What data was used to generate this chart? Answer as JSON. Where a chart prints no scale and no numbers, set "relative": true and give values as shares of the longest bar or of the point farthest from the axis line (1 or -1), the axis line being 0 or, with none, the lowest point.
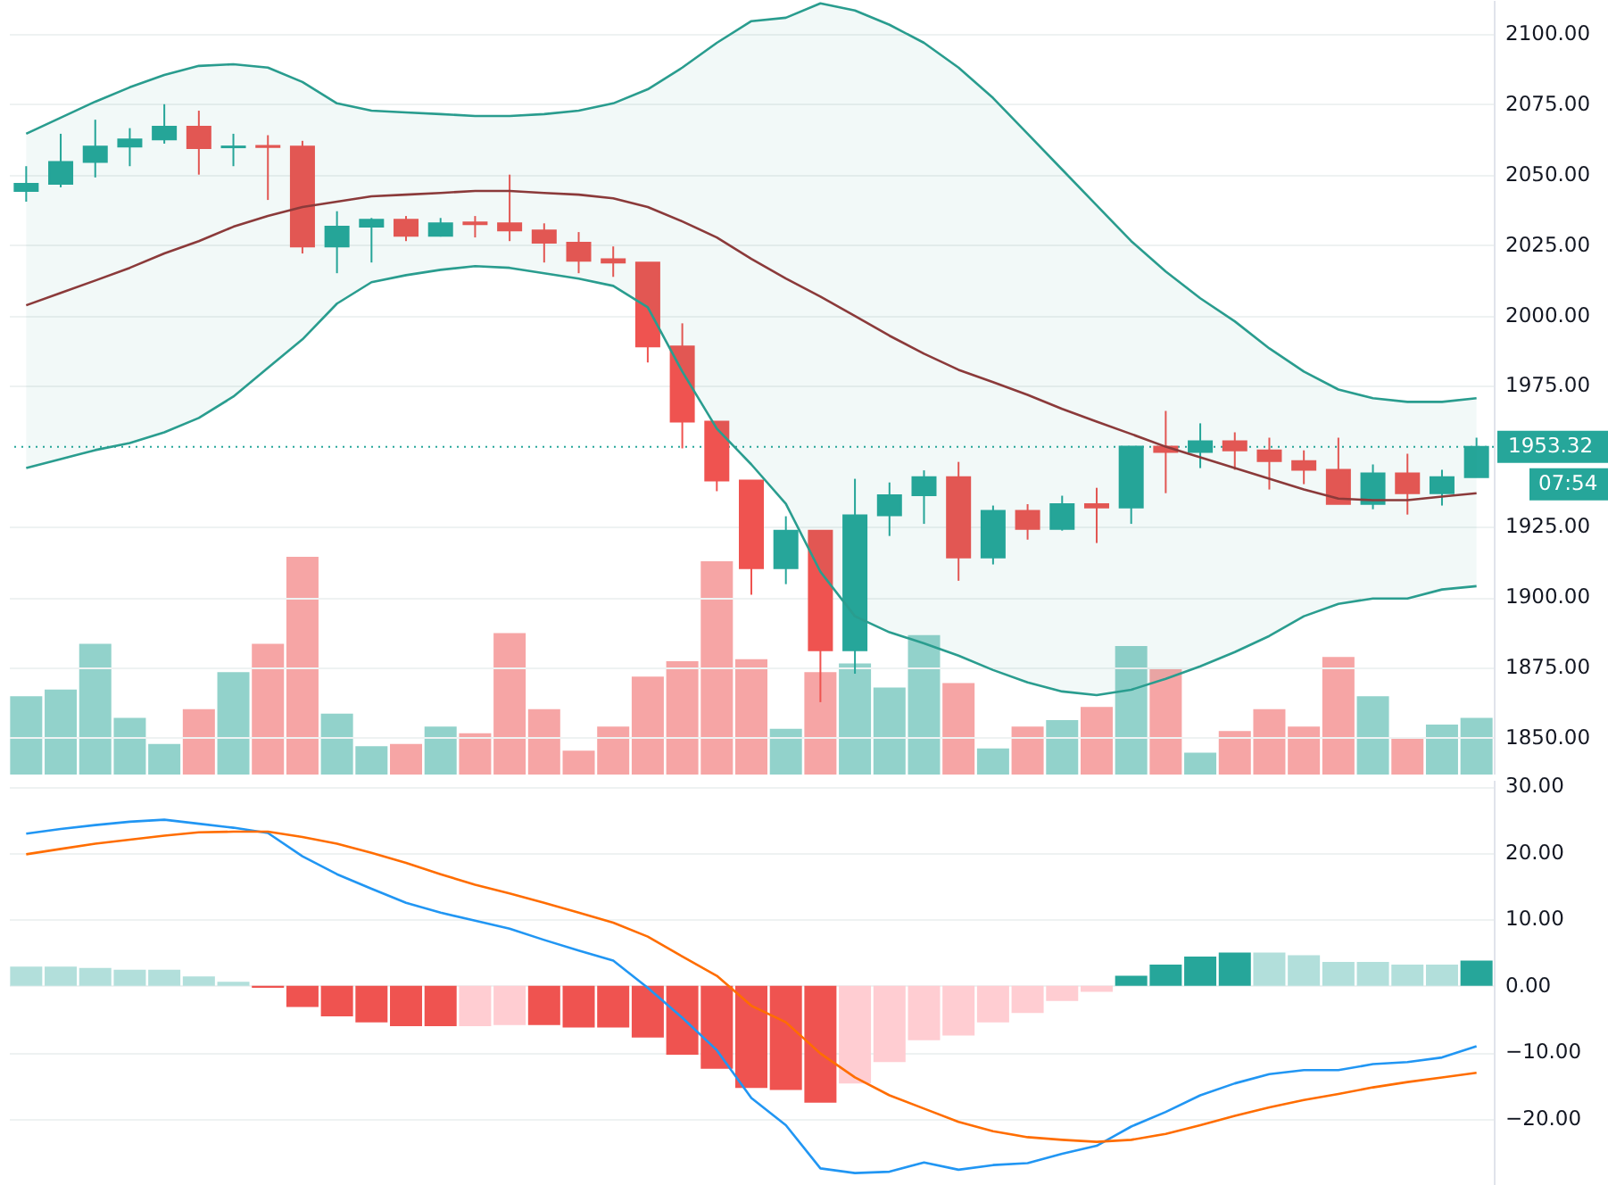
{
  "chart_data": [
    {
      "type": "candlestick",
      "categories": [
        null,
        null,
        null,
        null,
        null,
        null,
        null,
        null,
        null,
        null,
        null,
        null,
        null,
        null,
        null,
        null,
        null,
        null,
        null,
        null,
        null,
        null,
        null,
        null,
        null,
        null,
        null,
        null,
        null,
        null,
        null,
        null,
        null,
        null,
        null,
        null,
        null,
        null,
        null,
        null,
        null,
        null,
        null
      ],
      "ohlc": [
        [
          2044.2,
          2053,
          2040.4,
          2046.7
        ],
        [
          2046.7,
          2064.5,
          2045.5,
          2054.5
        ],
        [
          2054.5,
          2069.5,
          2049,
          2060
        ],
        [
          2060,
          2066.5,
          2053,
          2062.5
        ],
        [
          2062.5,
          2075,
          2061,
          2067
        ],
        [
          2067,
          2072.7,
          2050,
          2059.4
        ],
        [
          2059.7,
          2064.5,
          2053,
          2060
        ],
        [
          2060.2,
          2064,
          2041,
          2059.8
        ],
        [
          2060,
          2062,
          2022,
          2024.5
        ],
        [
          2024.5,
          2037,
          2015,
          2031.5
        ],
        [
          2031.5,
          2034.6,
          2018.8,
          2034
        ],
        [
          2034,
          2035.3,
          2026.4,
          2028.3
        ],
        [
          2028.3,
          2034.6,
          2028,
          2032.7
        ],
        [
          2033,
          2035.3,
          2027.7,
          2032.4
        ],
        [
          2032.7,
          2050,
          2026.4,
          2030.2
        ],
        [
          2030.2,
          2032.7,
          2018.8,
          2025.8
        ],
        [
          2025.8,
          2029.6,
          2015,
          2019.4
        ],
        [
          2020,
          2024.5,
          2013.7,
          2018.8
        ],
        [
          2018.8,
          2018.8,
          1983.3,
          1989
        ],
        [
          1989,
          1997.2,
          1952.8,
          1962.3
        ],
        [
          1962.3,
          1962.3,
          1937.6,
          1941.4
        ],
        [
          1941.4,
          1941.4,
          1900.8,
          1910.3
        ],
        [
          1910.3,
          1928.7,
          1904.6,
          1923.6
        ],
        [
          1923.6,
          1923.6,
          1862.7,
          1881.1
        ],
        [
          1881.1,
          1942,
          1872.8,
          1929
        ],
        [
          1929,
          1940.7,
          1921.7,
          1936.2
        ],
        [
          1936.2,
          1945,
          1926,
          1942.6
        ],
        [
          1942.6,
          1948,
          1905.8,
          1914.1
        ],
        [
          1914.1,
          1932.5,
          1911.6,
          1930.6
        ],
        [
          1930.6,
          1933,
          1920.4,
          1924.2
        ],
        [
          1924.2,
          1936,
          1923.6,
          1933
        ],
        [
          1933,
          1938.8,
          1919.2,
          1931.8
        ],
        [
          1931.8,
          1953.4,
          1926,
          1953.4
        ],
        [
          1953.4,
          1966.1,
          1936.9,
          1951.5
        ],
        [
          1951.5,
          1961.7,
          1945.8,
          1955.3
        ],
        [
          1955.3,
          1958.5,
          1945.2,
          1952.1
        ],
        [
          1952.1,
          1956.6,
          1938.2,
          1948.3
        ],
        [
          1948.3,
          1952.1,
          1940.1,
          1945.2
        ],
        [
          1945.2,
          1956.6,
          1933.1,
          1933.1
        ],
        [
          1933.1,
          1947.1,
          1931.2,
          1943.9
        ],
        [
          1943.9,
          1950.9,
          1929.3,
          1936.9
        ],
        [
          1936.9,
          1945.2,
          1932.5,
          1942.6
        ],
        [
          1942.6,
          1956.6,
          1942.6,
          1953.32
        ]
      ],
      "colors": [
        "#26a69a",
        "#26a69a",
        "#26a69a",
        "#26a69a",
        "#26a69a",
        "#ef5350",
        "#26a69a",
        "#ef5350",
        "#ef5350",
        "#26a69a",
        "#26a69a",
        "#ef5350",
        "#26a69a",
        "#ef5350",
        "#ef5350",
        "#ef5350",
        "#ef5350",
        "#ef5350",
        "#ef5350",
        "#ef5350",
        "#ef5350",
        "#ef5350",
        "#26a69a",
        "#ef5350",
        "#26a69a",
        "#26a69a",
        "#26a69a",
        "#ef5350",
        "#26a69a",
        "#ef5350",
        "#26a69a",
        "#ef5350",
        "#26a69a",
        "#ef5350",
        "#26a69a",
        "#ef5350",
        "#ef5350",
        "#ef5350",
        "#ef5350",
        "#26a69a",
        "#ef5350",
        "#26a69a",
        "#26a69a"
      ],
      "series": [
        {
          "type": "line",
          "color": "#2a9d8f",
          "values": [
            2064.5,
            2070.2,
            2075.9,
            2081.0,
            2085.4,
            2088.6,
            2089.2,
            2088.0,
            2082.9,
            2075.3,
            2072.7,
            2072.1,
            2071.5,
            2070.8,
            2070.8,
            2071.5,
            2072.7,
            2075.3,
            2080.3,
            2088.0,
            2096.8,
            2104.5,
            2105.7,
            2110.8,
            2108.3,
            2103.2,
            2096.8,
            2088.0,
            2077.2,
            2064.5,
            2051.8,
            2039.1,
            2026.4,
            2015.6,
            2006.1,
            1997.9,
            1988.3,
            1980.1,
            1973.7,
            1970.6,
            1969.3,
            1969.3,
            1970.6
          ]
        },
        {
          "type": "line",
          "color": "#8b3a3a",
          "values": [
            2003.6,
            2008.0,
            2012.4,
            2016.9,
            2022.0,
            2026.4,
            2031.5,
            2035.3,
            2038.5,
            2040.4,
            2042.3,
            2042.9,
            2043.5,
            2044.2,
            2044.2,
            2043.5,
            2042.9,
            2041.6,
            2038.5,
            2033.4,
            2027.7,
            2020.1,
            2013.1,
            2006.7,
            1999.8,
            1992.8,
            1986.4,
            1980.7,
            1976.3,
            1971.8,
            1966.8,
            1962.3,
            1957.9,
            1953.4,
            1949.6,
            1945.8,
            1942.0,
            1938.2,
            1935.0,
            1934.4,
            1934.4,
            1935.7,
            1936.9
          ],
          "upper": [
            2064.5,
            2070.2,
            2075.9,
            2081.0,
            2085.4,
            2088.6,
            2089.2,
            2088.0,
            2082.9,
            2075.3,
            2072.7,
            2072.1,
            2071.5,
            2070.8,
            2070.8,
            2071.5,
            2072.7,
            2075.3,
            2080.3,
            2088.0,
            2096.8,
            2104.5,
            2105.7,
            2110.8,
            2108.3,
            2103.2,
            2096.8,
            2088.0,
            2077.2,
            2064.5,
            2051.8,
            2039.1,
            2026.4,
            2015.6,
            2006.1,
            1997.9,
            1988.3,
            1980.1,
            1973.7,
            1970.6,
            1969.3,
            1969.3,
            1970.6
          ],
          "lower": [
            1945.8,
            1949.0,
            1952.2,
            1954.7,
            1958.5,
            1963.6,
            1971.2,
            1981.4,
            1991.5,
            2004.2,
            2011.8,
            2014.3,
            2016.2,
            2017.5,
            2016.9,
            2015.0,
            2013.1,
            2010.5,
            2002.9,
            1980.1,
            1959.8,
            1947.1,
            1933.1,
            1909.0,
            1893.2,
            1887.5,
            1883.6,
            1879.2,
            1874.1,
            1869.7,
            1866.5,
            1865.2,
            1867.1,
            1871.0,
            1875.4,
            1880.5,
            1886.2,
            1893.2,
            1897.6,
            1899.5,
            1899.5,
            1902.7,
            1903.9
          ]
        },
        {
          "type": "line",
          "color": "#2a9d8f",
          "values": [
            1945.8,
            1949.0,
            1952.2,
            1954.7,
            1958.5,
            1963.6,
            1971.2,
            1981.4,
            1991.5,
            2004.2,
            2011.8,
            2014.3,
            2016.2,
            2017.5,
            2016.9,
            2015.0,
            2013.1,
            2010.5,
            2002.9,
            1980.1,
            1959.8,
            1947.1,
            1933.1,
            1909.0,
            1893.2,
            1887.5,
            1883.6,
            1879.2,
            1874.1,
            1869.7,
            1866.5,
            1865.2,
            1867.1,
            1871.0,
            1875.4,
            1880.5,
            1886.2,
            1893.2,
            1897.6,
            1899.5,
            1899.5,
            1902.7,
            1903.9
          ]
        }
      ],
      "ylim": [
        1837,
        2112
      ],
      "yticks": [
        {
          "value": 1850,
          "label": "1850.00"
        },
        {
          "value": 1875,
          "label": "1875.00"
        },
        {
          "value": 1900,
          "label": "1900.00"
        },
        {
          "value": 1925,
          "label": "1925.00"
        },
        {
          "value": 1975,
          "label": "1975.00"
        },
        {
          "value": 2000,
          "label": "2000.00"
        },
        {
          "value": 2025,
          "label": "2025.00"
        },
        {
          "value": 2050,
          "label": "2050.00"
        },
        {
          "value": 2075,
          "label": "2075.00"
        },
        {
          "value": 2100,
          "label": "2100.00"
        }
      ],
      "ref_lines": [
        {
          "axis": "y",
          "value": 1953.32,
          "label": "1953.32",
          "color": "#26a69a",
          "line_style": "dotted"
        }
      ],
      "annotations": [
        "07:54"
      ],
      "grid": "y",
      "tick_labels": "y"
    },
    {
      "type": "bar",
      "relative": true,
      "categories": [
        null,
        null,
        null,
        null,
        null,
        null,
        null,
        null,
        null,
        null,
        null,
        null,
        null,
        null,
        null,
        null,
        null,
        null,
        null,
        null,
        null,
        null,
        null,
        null,
        null,
        null,
        null,
        null,
        null,
        null,
        null,
        null,
        null,
        null,
        null,
        null,
        null,
        null,
        null,
        null,
        null,
        null,
        null
      ],
      "values": [
        0.36,
        0.39,
        0.6,
        0.26,
        0.14,
        0.3,
        0.47,
        0.6,
        1,
        0.28,
        0.13,
        0.14,
        0.22,
        0.19,
        0.65,
        0.3,
        0.11,
        0.22,
        0.45,
        0.52,
        0.98,
        0.53,
        0.21,
        0.47,
        0.51,
        0.4,
        0.64,
        0.42,
        0.12,
        0.22,
        0.25,
        0.31,
        0.59,
        0.49,
        0.1,
        0.2,
        0.3,
        0.22,
        0.54,
        0.36,
        0.17,
        0.23,
        0.26
      ],
      "colors": [
        "#92d2cb",
        "#92d2cb",
        "#92d2cb",
        "#92d2cb",
        "#92d2cb",
        "#f6a5a5",
        "#92d2cb",
        "#f6a5a5",
        "#f6a5a5",
        "#92d2cb",
        "#92d2cb",
        "#f6a5a5",
        "#92d2cb",
        "#f6a5a5",
        "#f6a5a5",
        "#f6a5a5",
        "#f6a5a5",
        "#f6a5a5",
        "#f6a5a5",
        "#f6a5a5",
        "#f6a5a5",
        "#f6a5a5",
        "#92d2cb",
        "#f6a5a5",
        "#92d2cb",
        "#92d2cb",
        "#92d2cb",
        "#f6a5a5",
        "#92d2cb",
        "#f6a5a5",
        "#92d2cb",
        "#f6a5a5",
        "#92d2cb",
        "#f6a5a5",
        "#92d2cb",
        "#f6a5a5",
        "#f6a5a5",
        "#f6a5a5",
        "#f6a5a5",
        "#92d2cb",
        "#f6a5a5",
        "#92d2cb",
        "#92d2cb"
      ],
      "tick_labels": false
    },
    {
      "type": "bar",
      "categories": [
        null,
        null,
        null,
        null,
        null,
        null,
        null,
        null,
        null,
        null,
        null,
        null,
        null,
        null,
        null,
        null,
        null,
        null,
        null,
        null,
        null,
        null,
        null,
        null,
        null,
        null,
        null,
        null,
        null,
        null,
        null,
        null,
        null,
        null,
        null,
        null,
        null,
        null,
        null,
        null,
        null,
        null,
        null
      ],
      "series": [
        {
          "type": "bar",
          "values": [
            2.9,
            2.9,
            2.7,
            2.4,
            2.4,
            1.4,
            0.6,
            -0.3,
            -3.2,
            -4.6,
            -5.5,
            -6.1,
            -6.1,
            -6.1,
            -5.9,
            -5.9,
            -6.3,
            -6.3,
            -7.8,
            -10.4,
            -12.5,
            -15.4,
            -15.7,
            -17.6,
            -14.7,
            -11.5,
            -8.2,
            -7.5,
            -5.5,
            -4.1,
            -2.3,
            -0.9,
            1.5,
            3.2,
            4.4,
            5.0,
            5.0,
            4.6,
            3.6,
            3.6,
            3.2,
            3.2,
            3.8
          ],
          "colors": [
            "#b2dfdb",
            "#b2dfdb",
            "#b2dfdb",
            "#b2dfdb",
            "#b2dfdb",
            "#b2dfdb",
            "#b2dfdb",
            "#ef5350",
            "#ef5350",
            "#ef5350",
            "#ef5350",
            "#ef5350",
            "#ef5350",
            "#ffcdd2",
            "#ffcdd2",
            "#ef5350",
            "#ef5350",
            "#ef5350",
            "#ef5350",
            "#ef5350",
            "#ef5350",
            "#ef5350",
            "#ef5350",
            "#ef5350",
            "#ffcdd2",
            "#ffcdd2",
            "#ffcdd2",
            "#ffcdd2",
            "#ffcdd2",
            "#ffcdd2",
            "#ffcdd2",
            "#ffcdd2",
            "#26a69a",
            "#26a69a",
            "#26a69a",
            "#26a69a",
            "#b2dfdb",
            "#b2dfdb",
            "#b2dfdb",
            "#b2dfdb",
            "#b2dfdb",
            "#b2dfdb",
            "#26a69a"
          ]
        },
        {
          "type": "line",
          "color": "#2196f3",
          "values": [
            22.9,
            23.6,
            24.2,
            24.7,
            25.0,
            24.4,
            23.8,
            23.0,
            19.5,
            16.8,
            14.6,
            12.5,
            11.0,
            9.8,
            8.6,
            6.9,
            5.3,
            3.8,
            -0.3,
            -4.8,
            -9.7,
            -16.9,
            -21.0,
            -27.5,
            -28.2,
            -28.0,
            -26.6,
            -27.7,
            -27.0,
            -26.7,
            -25.3,
            -24.1,
            -21.2,
            -19.0,
            -16.5,
            -14.7,
            -13.3,
            -12.7,
            -12.7,
            -11.8,
            -11.5,
            -10.8,
            -9.1
          ]
        },
        {
          "type": "line",
          "color": "#ff6d00",
          "values": [
            19.8,
            20.6,
            21.4,
            22.0,
            22.6,
            23.1,
            23.2,
            23.2,
            22.4,
            21.4,
            20.0,
            18.5,
            16.8,
            15.2,
            13.9,
            12.5,
            11.0,
            9.5,
            7.4,
            4.4,
            1.5,
            -3.0,
            -5.5,
            -10.2,
            -13.8,
            -16.5,
            -18.5,
            -20.5,
            -21.9,
            -22.8,
            -23.2,
            -23.5,
            -23.2,
            -22.3,
            -21.0,
            -19.6,
            -18.3,
            -17.2,
            -16.3,
            -15.3,
            -14.5,
            -13.8,
            -13.1
          ]
        }
      ],
      "ylim": [
        -30,
        31
      ],
      "yticks": [
        {
          "value": -20,
          "label": "−20.00"
        },
        {
          "value": -10,
          "label": "−10.00"
        },
        {
          "value": 0,
          "label": "0.00"
        },
        {
          "value": 10,
          "label": "10.00"
        },
        {
          "value": 20,
          "label": "20.00"
        },
        {
          "value": 30,
          "label": "30.00"
        }
      ],
      "grid": "y",
      "tick_labels": "y"
    }
  ]
}
